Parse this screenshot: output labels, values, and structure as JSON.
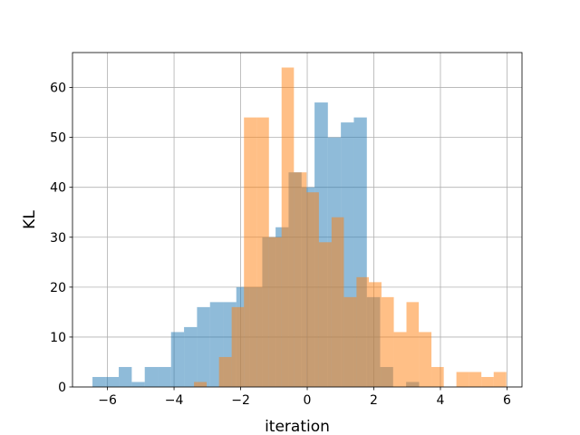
{
  "chart_data": {
    "type": "histogram",
    "title": "",
    "xlabel": "iteration",
    "ylabel": "KL",
    "xlim": [
      -7.05,
      6.45
    ],
    "ylim": [
      0,
      67
    ],
    "grid": true,
    "legend": "none",
    "xticks": [
      -6,
      -4,
      -2,
      0,
      2,
      4,
      6
    ],
    "xtick_labels": [
      "−6",
      "−4",
      "−2",
      "0",
      "2",
      "4",
      "6"
    ],
    "yticks": [
      0,
      10,
      20,
      30,
      40,
      50,
      60
    ],
    "ytick_labels": [
      "0",
      "10",
      "20",
      "30",
      "40",
      "50",
      "60"
    ],
    "series": [
      {
        "color": "#1f77b4",
        "alpha": 0.5,
        "bins": [
          {
            "x0": -6.45,
            "x1": -6.06,
            "count": 2
          },
          {
            "x0": -6.06,
            "x1": -5.66,
            "count": 2
          },
          {
            "x0": -5.66,
            "x1": -5.27,
            "count": 4
          },
          {
            "x0": -5.27,
            "x1": -4.88,
            "count": 1
          },
          {
            "x0": -4.88,
            "x1": -4.49,
            "count": 4
          },
          {
            "x0": -4.49,
            "x1": -4.09,
            "count": 4
          },
          {
            "x0": -4.09,
            "x1": -3.7,
            "count": 11
          },
          {
            "x0": -3.7,
            "x1": -3.31,
            "count": 12
          },
          {
            "x0": -3.31,
            "x1": -2.92,
            "count": 16
          },
          {
            "x0": -2.92,
            "x1": -2.52,
            "count": 17
          },
          {
            "x0": -2.52,
            "x1": -2.13,
            "count": 17
          },
          {
            "x0": -2.13,
            "x1": -1.74,
            "count": 20
          },
          {
            "x0": -1.74,
            "x1": -1.35,
            "count": 20
          },
          {
            "x0": -1.35,
            "x1": -0.95,
            "count": 30
          },
          {
            "x0": -0.95,
            "x1": -0.56,
            "count": 32
          },
          {
            "x0": -0.56,
            "x1": -0.17,
            "count": 43
          },
          {
            "x0": -0.17,
            "x1": 0.22,
            "count": 40
          },
          {
            "x0": 0.22,
            "x1": 0.62,
            "count": 57
          },
          {
            "x0": 0.62,
            "x1": 1.01,
            "count": 50
          },
          {
            "x0": 1.01,
            "x1": 1.4,
            "count": 53
          },
          {
            "x0": 1.4,
            "x1": 1.79,
            "count": 54
          },
          {
            "x0": 1.79,
            "x1": 2.19,
            "count": 18
          },
          {
            "x0": 2.19,
            "x1": 2.58,
            "count": 4
          },
          {
            "x0": 2.58,
            "x1": 2.97,
            "count": 0
          },
          {
            "x0": 2.97,
            "x1": 3.36,
            "count": 1
          }
        ]
      },
      {
        "color": "#ff7f0e",
        "alpha": 0.5,
        "bins": [
          {
            "x0": -3.4,
            "x1": -3.02,
            "count": 1
          },
          {
            "x0": -3.02,
            "x1": -2.65,
            "count": 0
          },
          {
            "x0": -2.65,
            "x1": -2.27,
            "count": 6
          },
          {
            "x0": -2.27,
            "x1": -1.9,
            "count": 16
          },
          {
            "x0": -1.9,
            "x1": -1.52,
            "count": 54
          },
          {
            "x0": -1.52,
            "x1": -1.15,
            "count": 54
          },
          {
            "x0": -1.15,
            "x1": -0.77,
            "count": 30
          },
          {
            "x0": -0.77,
            "x1": -0.4,
            "count": 64
          },
          {
            "x0": -0.4,
            "x1": -0.02,
            "count": 43
          },
          {
            "x0": -0.02,
            "x1": 0.35,
            "count": 39
          },
          {
            "x0": 0.35,
            "x1": 0.73,
            "count": 29
          },
          {
            "x0": 0.73,
            "x1": 1.1,
            "count": 34
          },
          {
            "x0": 1.1,
            "x1": 1.48,
            "count": 18
          },
          {
            "x0": 1.48,
            "x1": 1.85,
            "count": 22
          },
          {
            "x0": 1.85,
            "x1": 2.23,
            "count": 21
          },
          {
            "x0": 2.23,
            "x1": 2.6,
            "count": 18
          },
          {
            "x0": 2.6,
            "x1": 2.98,
            "count": 11
          },
          {
            "x0": 2.98,
            "x1": 3.35,
            "count": 17
          },
          {
            "x0": 3.35,
            "x1": 3.73,
            "count": 11
          },
          {
            "x0": 3.73,
            "x1": 4.1,
            "count": 4
          },
          {
            "x0": 4.1,
            "x1": 4.48,
            "count": 0
          },
          {
            "x0": 4.48,
            "x1": 4.85,
            "count": 3
          },
          {
            "x0": 4.85,
            "x1": 5.23,
            "count": 3
          },
          {
            "x0": 5.23,
            "x1": 5.6,
            "count": 2
          },
          {
            "x0": 5.6,
            "x1": 5.98,
            "count": 3
          }
        ]
      }
    ]
  }
}
